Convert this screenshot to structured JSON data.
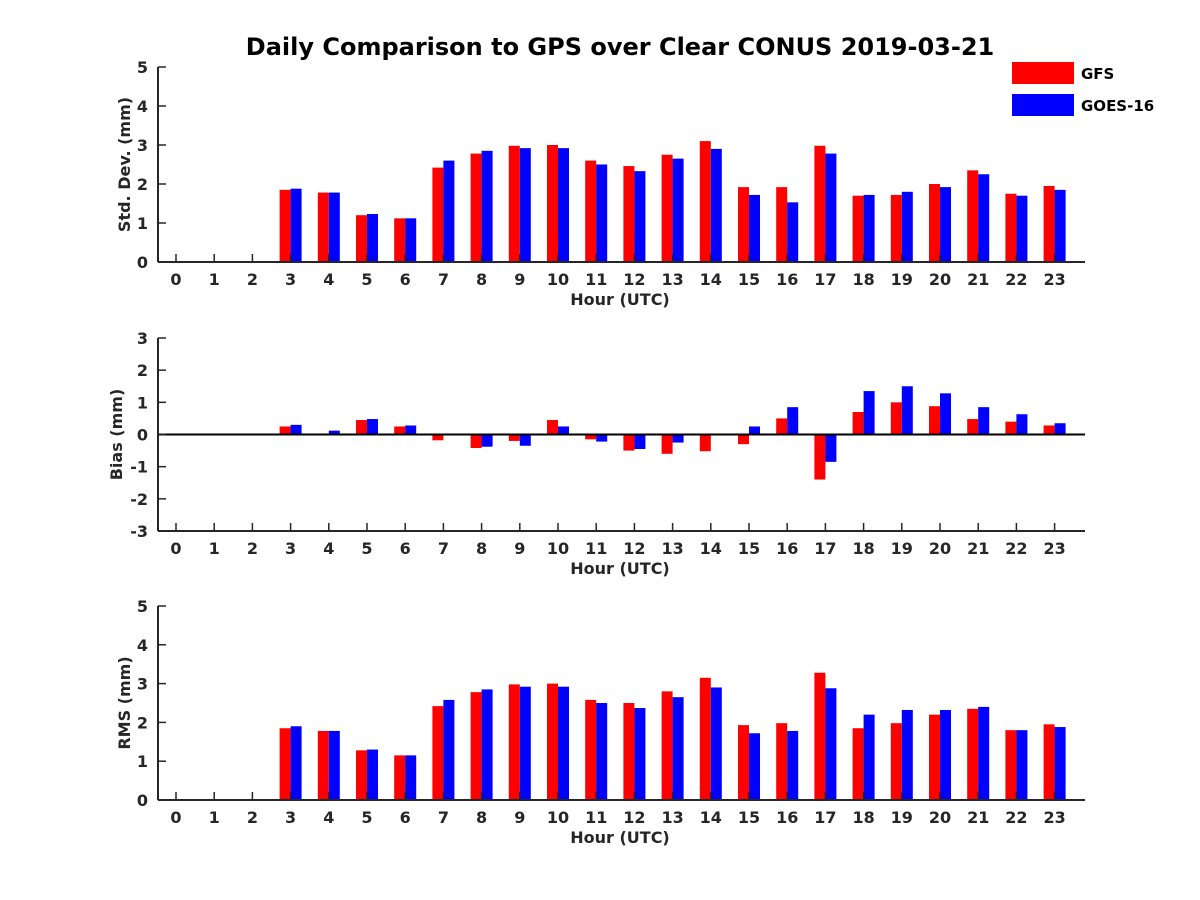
{
  "chart_data": {
    "type": "bar",
    "title": "Daily Comparison to GPS over Clear CONUS 2019-03-21",
    "colors": {
      "GFS": "#ff0000",
      "GOES-16": "#0000ff"
    },
    "legend": {
      "placement": "top-right",
      "entries": [
        "GFS",
        "GOES-16"
      ]
    },
    "categories": [
      "0",
      "1",
      "2",
      "3",
      "4",
      "5",
      "6",
      "7",
      "8",
      "9",
      "10",
      "11",
      "12",
      "13",
      "14",
      "15",
      "16",
      "17",
      "18",
      "19",
      "20",
      "21",
      "22",
      "23"
    ],
    "panels": [
      {
        "id": "std",
        "ylabel": "Std. Dev. (mm)",
        "xlabel": "Hour (UTC)",
        "ylim": [
          0,
          5
        ],
        "yticks": [
          "0",
          "1",
          "2",
          "3",
          "4",
          "5"
        ],
        "series": [
          {
            "name": "GFS",
            "values": [
              null,
              null,
              null,
              1.85,
              1.78,
              1.2,
              1.12,
              2.42,
              2.78,
              2.98,
              3.0,
              2.6,
              2.46,
              2.75,
              3.1,
              1.92,
              1.92,
              2.98,
              1.7,
              1.72,
              2.0,
              2.35,
              1.75,
              1.95
            ]
          },
          {
            "name": "GOES-16",
            "values": [
              null,
              null,
              null,
              1.88,
              1.78,
              1.23,
              1.12,
              2.6,
              2.85,
              2.92,
              2.92,
              2.5,
              2.33,
              2.65,
              2.9,
              1.72,
              1.53,
              2.78,
              1.72,
              1.8,
              1.92,
              2.25,
              1.7,
              1.85
            ]
          }
        ]
      },
      {
        "id": "bias",
        "ylabel": "Bias (mm)",
        "xlabel": "Hour (UTC)",
        "ylim": [
          -3,
          3
        ],
        "yticks": [
          "-3",
          "-2",
          "-1",
          "0",
          "1",
          "2",
          "3"
        ],
        "series": [
          {
            "name": "GFS",
            "values": [
              null,
              null,
              null,
              0.25,
              0.02,
              0.45,
              0.25,
              -0.18,
              -0.42,
              -0.2,
              0.45,
              -0.15,
              -0.5,
              -0.6,
              -0.52,
              -0.3,
              0.5,
              -1.4,
              0.7,
              1.0,
              0.88,
              0.48,
              0.4,
              0.28
            ]
          },
          {
            "name": "GOES-16",
            "values": [
              null,
              null,
              null,
              0.3,
              0.12,
              0.48,
              0.28,
              0.0,
              -0.38,
              -0.35,
              0.25,
              -0.22,
              -0.45,
              -0.25,
              0.02,
              0.25,
              0.85,
              -0.85,
              1.35,
              1.5,
              1.28,
              0.85,
              0.63,
              0.35
            ]
          }
        ]
      },
      {
        "id": "rms",
        "ylabel": "RMS (mm)",
        "xlabel": "Hour (UTC)",
        "ylim": [
          0,
          5
        ],
        "yticks": [
          "0",
          "1",
          "2",
          "3",
          "4",
          "5"
        ],
        "series": [
          {
            "name": "GFS",
            "values": [
              null,
              null,
              null,
              1.85,
              1.78,
              1.28,
              1.15,
              2.42,
              2.78,
              2.98,
              3.0,
              2.58,
              2.5,
              2.8,
              3.15,
              1.93,
              1.98,
              3.28,
              1.85,
              1.98,
              2.2,
              2.35,
              1.8,
              1.95
            ]
          },
          {
            "name": "GOES-16",
            "values": [
              null,
              null,
              null,
              1.9,
              1.78,
              1.3,
              1.15,
              2.58,
              2.85,
              2.92,
              2.92,
              2.5,
              2.37,
              2.65,
              2.9,
              1.72,
              1.78,
              2.88,
              2.2,
              2.32,
              2.32,
              2.4,
              1.8,
              1.88
            ]
          }
        ]
      }
    ]
  }
}
